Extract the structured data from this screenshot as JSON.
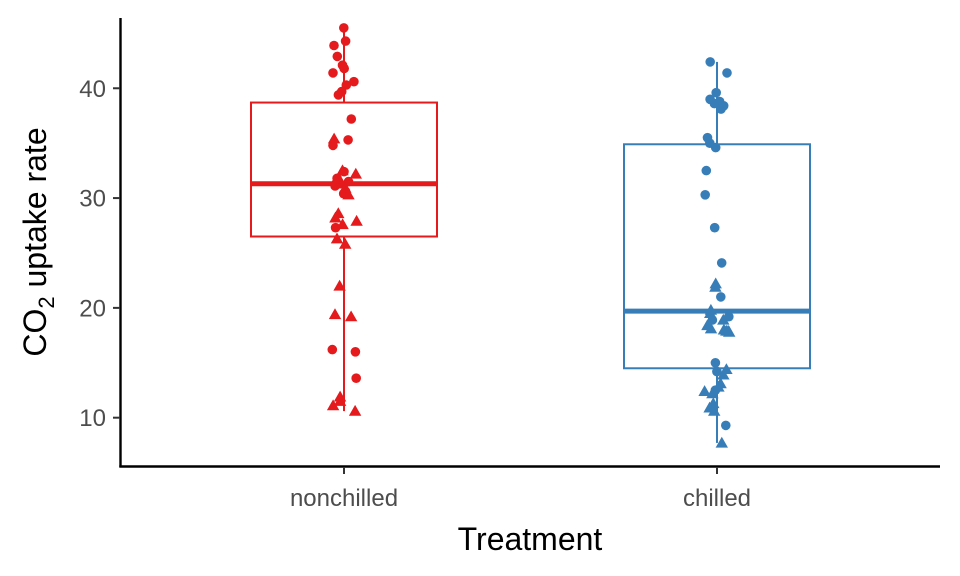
{
  "chart_data": {
    "type": "boxplot",
    "xlabel": "Treatment",
    "ylabel": {
      "main": "CO",
      "sub": "2",
      "rest": " uptake rate"
    },
    "categories": [
      "nonchilled",
      "chilled"
    ],
    "ylim": [
      5.6,
      46.4
    ],
    "yticks": [
      10,
      20,
      30,
      40
    ],
    "grid": false,
    "legend": "none",
    "colors": {
      "nonchilled": "#E41A1C",
      "chilled": "#377EB8"
    },
    "boxes": [
      {
        "name": "nonchilled",
        "min": 10.6,
        "q1": 26.5,
        "median": 31.3,
        "q3": 38.7,
        "max": 45.5
      },
      {
        "name": "chilled",
        "min": 7.7,
        "q1": 14.5,
        "median": 19.7,
        "q3": 34.9,
        "max": 42.4
      }
    ],
    "points": {
      "nonchilled": {
        "circle": [
          45.5,
          44.3,
          43.9,
          42.9,
          42.1,
          41.8,
          41.4,
          40.6,
          40.3,
          39.7,
          39.4,
          37.2,
          35.3,
          34.8,
          32.4,
          31.8,
          31.5,
          31.1,
          30.6,
          30.4,
          27.3,
          16.2,
          16.0,
          13.6
        ],
        "triangle": [
          35.4,
          32.5,
          32.2,
          31.6,
          31.3,
          30.9,
          30.3,
          28.6,
          28.2,
          27.9,
          27.6,
          26.3,
          25.8,
          22.0,
          19.4,
          19.2,
          11.9,
          11.5,
          11.1,
          10.6
        ]
      },
      "chilled": {
        "circle": [
          42.4,
          41.4,
          39.6,
          39.0,
          38.8,
          38.6,
          38.4,
          38.1,
          35.5,
          35.0,
          34.6,
          32.5,
          30.3,
          27.3,
          24.1,
          21.0,
          19.2,
          18.9,
          15.0,
          14.2,
          12.5,
          9.3
        ],
        "triangle": [
          22.2,
          21.9,
          19.8,
          19.5,
          18.9,
          18.4,
          18.1,
          18.0,
          17.9,
          17.8,
          17.9,
          14.4,
          13.9,
          13.1,
          12.8,
          12.4,
          12.2,
          11.3,
          10.9,
          10.6,
          7.7
        ]
      }
    }
  }
}
